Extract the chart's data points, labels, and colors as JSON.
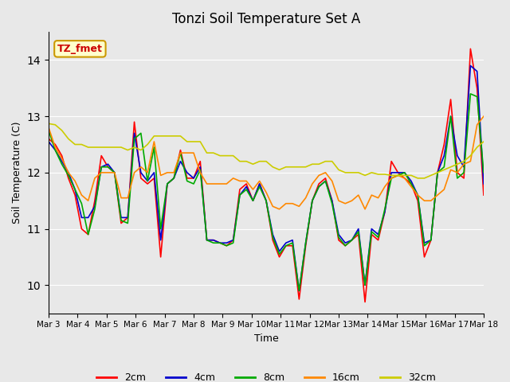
{
  "title": "Tonzi Soil Temperature Set A",
  "xlabel": "Time",
  "ylabel": "Soil Temperature (C)",
  "ylim": [
    9.5,
    14.5
  ],
  "annotation_text": "TZ_fmet",
  "annotation_bg": "#ffffcc",
  "annotation_border": "#cc9900",
  "bg_color": "#e8e8e8",
  "plot_bg_color": "#e8e8e8",
  "legend_labels": [
    "2cm",
    "4cm",
    "8cm",
    "16cm",
    "32cm"
  ],
  "line_colors": [
    "#ff0000",
    "#0000cc",
    "#00aa00",
    "#ff8800",
    "#cccc00"
  ],
  "xtick_labels": [
    "Mar 3",
    "Mar 4",
    "Mar 5",
    "Mar 6",
    "Mar 7",
    "Mar 8",
    "Mar 9",
    "Mar 10",
    "Mar 11",
    "Mar 12",
    "Mar 13",
    "Mar 14",
    "Mar 15",
    "Mar 16",
    "Mar 17",
    "Mar 18"
  ],
  "data_2cm": [
    12.6,
    12.5,
    12.3,
    11.9,
    11.6,
    11.0,
    10.9,
    11.5,
    12.3,
    12.1,
    12.0,
    11.1,
    11.2,
    12.9,
    11.9,
    11.8,
    11.9,
    10.5,
    11.8,
    11.9,
    12.4,
    11.9,
    11.9,
    12.2,
    10.8,
    10.8,
    10.75,
    10.7,
    10.8,
    11.7,
    11.8,
    11.5,
    11.8,
    11.5,
    10.8,
    10.5,
    10.7,
    10.7,
    9.75,
    10.7,
    11.5,
    11.8,
    11.9,
    11.5,
    10.8,
    10.7,
    10.8,
    10.9,
    9.7,
    10.9,
    10.8,
    11.3,
    12.2,
    12.0,
    11.9,
    11.8,
    11.5,
    10.5,
    10.8,
    12.0,
    12.5,
    13.3,
    12.0,
    11.9,
    14.2,
    13.5,
    11.6
  ],
  "data_4cm": [
    12.55,
    12.4,
    12.2,
    12.0,
    11.7,
    11.2,
    11.2,
    11.4,
    12.1,
    12.15,
    12.0,
    11.2,
    11.2,
    12.7,
    12.0,
    11.85,
    12.0,
    10.8,
    11.8,
    11.9,
    12.2,
    12.0,
    11.9,
    12.1,
    10.8,
    10.8,
    10.75,
    10.75,
    10.8,
    11.6,
    11.75,
    11.5,
    11.8,
    11.5,
    10.9,
    10.6,
    10.75,
    10.8,
    9.9,
    10.75,
    11.5,
    11.75,
    11.85,
    11.5,
    10.9,
    10.75,
    10.8,
    11.0,
    10.0,
    11.0,
    10.9,
    11.3,
    12.0,
    12.0,
    12.0,
    11.85,
    11.6,
    10.75,
    10.8,
    12.0,
    12.3,
    13.0,
    12.3,
    12.1,
    13.9,
    13.8,
    11.8
  ],
  "data_8cm": [
    12.75,
    12.4,
    12.15,
    11.95,
    11.7,
    11.45,
    10.9,
    11.35,
    12.1,
    12.1,
    12.0,
    11.15,
    11.1,
    12.6,
    12.7,
    11.85,
    12.45,
    11.0,
    11.8,
    11.9,
    12.35,
    11.85,
    11.8,
    12.05,
    10.8,
    10.75,
    10.75,
    10.7,
    10.75,
    11.6,
    11.7,
    11.5,
    11.75,
    11.5,
    10.85,
    10.55,
    10.7,
    10.75,
    9.9,
    10.75,
    11.5,
    11.75,
    11.85,
    11.45,
    10.85,
    10.7,
    10.8,
    10.95,
    10.0,
    10.95,
    10.85,
    11.35,
    11.9,
    11.95,
    12.0,
    11.8,
    11.6,
    10.7,
    10.8,
    12.0,
    12.1,
    13.0,
    11.9,
    12.0,
    13.4,
    13.35,
    12.0
  ],
  "data_16cm": [
    12.8,
    12.45,
    12.25,
    12.0,
    11.85,
    11.6,
    11.5,
    11.9,
    12.0,
    12.0,
    12.0,
    11.55,
    11.55,
    12.0,
    12.1,
    12.0,
    12.55,
    11.95,
    12.0,
    12.0,
    12.35,
    12.35,
    12.35,
    12.0,
    11.8,
    11.8,
    11.8,
    11.8,
    11.9,
    11.85,
    11.85,
    11.7,
    11.85,
    11.65,
    11.4,
    11.35,
    11.45,
    11.45,
    11.4,
    11.55,
    11.8,
    11.95,
    12.0,
    11.85,
    11.5,
    11.45,
    11.5,
    11.6,
    11.35,
    11.6,
    11.55,
    11.75,
    11.9,
    11.95,
    11.9,
    11.75,
    11.6,
    11.5,
    11.5,
    11.6,
    11.7,
    12.05,
    12.0,
    12.15,
    12.2,
    12.85,
    13.0
  ],
  "data_32cm": [
    12.87,
    12.85,
    12.75,
    12.6,
    12.5,
    12.5,
    12.45,
    12.45,
    12.45,
    12.45,
    12.45,
    12.45,
    12.4,
    12.45,
    12.4,
    12.5,
    12.65,
    12.65,
    12.65,
    12.65,
    12.65,
    12.55,
    12.55,
    12.55,
    12.35,
    12.35,
    12.3,
    12.3,
    12.3,
    12.2,
    12.2,
    12.15,
    12.2,
    12.2,
    12.1,
    12.05,
    12.1,
    12.1,
    12.1,
    12.1,
    12.15,
    12.15,
    12.2,
    12.2,
    12.05,
    12.0,
    12.0,
    12.0,
    11.95,
    12.0,
    11.97,
    11.97,
    11.95,
    11.95,
    11.95,
    11.95,
    11.9,
    11.9,
    11.95,
    12.0,
    12.05,
    12.1,
    12.15,
    12.2,
    12.3,
    12.45,
    12.55
  ]
}
